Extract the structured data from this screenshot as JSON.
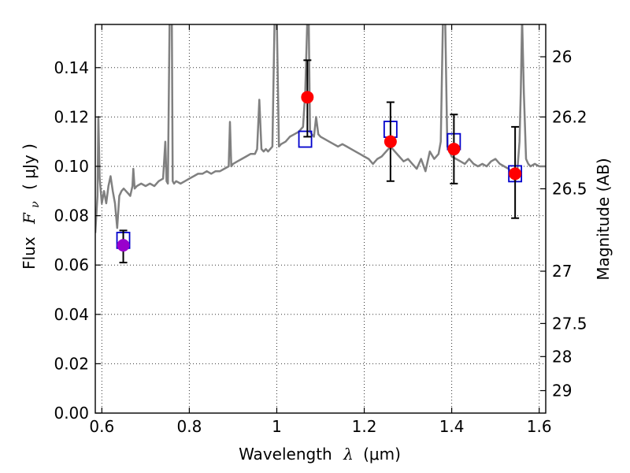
{
  "chart_data": {
    "type": "scatter",
    "xlabel_text": "Wavelength",
    "xlabel_symbol": "λ",
    "xlabel_unit": "(μm)",
    "ylabel_text": "Flux",
    "ylabel_symbol": "F",
    "ylabel_subscript": "ν",
    "ylabel_unit": "( μJy )",
    "y2label": "Magnitude (AB)",
    "xlim": [
      0.585,
      1.615
    ],
    "ylim": [
      0.0,
      0.1575
    ],
    "grid": true,
    "x_ticks": [
      {
        "value": 0.6,
        "label": "0.6"
      },
      {
        "value": 0.8,
        "label": "0.8"
      },
      {
        "value": 1.0,
        "label": "1"
      },
      {
        "value": 1.2,
        "label": "1.2"
      },
      {
        "value": 1.4,
        "label": "1.4"
      },
      {
        "value": 1.6,
        "label": "1.6"
      }
    ],
    "y_ticks": [
      {
        "value": 0.0,
        "label": "0.00"
      },
      {
        "value": 0.02,
        "label": "0.02"
      },
      {
        "value": 0.04,
        "label": "0.04"
      },
      {
        "value": 0.06,
        "label": "0.06"
      },
      {
        "value": 0.08,
        "label": "0.08"
      },
      {
        "value": 0.1,
        "label": "0.10"
      },
      {
        "value": 0.12,
        "label": "0.12"
      },
      {
        "value": 0.14,
        "label": "0.14"
      }
    ],
    "y2_ticks": [
      {
        "flux": 0.1444,
        "label": "26"
      },
      {
        "flux": 0.12,
        "label": "26.2"
      },
      {
        "flux": 0.0909,
        "label": "26.5"
      },
      {
        "flux": 0.0575,
        "label": "27"
      },
      {
        "flux": 0.0363,
        "label": "27.5"
      },
      {
        "flux": 0.0229,
        "label": "28"
      },
      {
        "flux": 0.0091,
        "label": "29"
      }
    ],
    "series": [
      {
        "kind": "line",
        "color": "#808080",
        "x": [
          0.585,
          0.59,
          0.592,
          0.595,
          0.6,
          0.605,
          0.61,
          0.615,
          0.62,
          0.625,
          0.63,
          0.635,
          0.64,
          0.645,
          0.65,
          0.655,
          0.66,
          0.665,
          0.67,
          0.672,
          0.675,
          0.68,
          0.69,
          0.7,
          0.71,
          0.72,
          0.73,
          0.74,
          0.745,
          0.748,
          0.751,
          0.755,
          0.758,
          0.76,
          0.762,
          0.765,
          0.77,
          0.78,
          0.79,
          0.8,
          0.81,
          0.82,
          0.83,
          0.84,
          0.85,
          0.86,
          0.87,
          0.88,
          0.89,
          0.893,
          0.896,
          0.9,
          0.91,
          0.92,
          0.93,
          0.94,
          0.95,
          0.955,
          0.96,
          0.965,
          0.97,
          0.975,
          0.98,
          0.99,
          0.995,
          1.0,
          1.005,
          1.01,
          1.02,
          1.03,
          1.04,
          1.05,
          1.06,
          1.065,
          1.07,
          1.073,
          1.076,
          1.08,
          1.085,
          1.09,
          1.095,
          1.1,
          1.11,
          1.12,
          1.13,
          1.14,
          1.15,
          1.16,
          1.17,
          1.18,
          1.19,
          1.2,
          1.21,
          1.22,
          1.23,
          1.24,
          1.25,
          1.26,
          1.27,
          1.28,
          1.29,
          1.3,
          1.31,
          1.32,
          1.33,
          1.34,
          1.35,
          1.36,
          1.37,
          1.375,
          1.38,
          1.385,
          1.39,
          1.4,
          1.41,
          1.42,
          1.43,
          1.44,
          1.45,
          1.46,
          1.47,
          1.48,
          1.49,
          1.5,
          1.51,
          1.52,
          1.53,
          1.54,
          1.545,
          1.55,
          1.555,
          1.558,
          1.561,
          1.565,
          1.57,
          1.575,
          1.58,
          1.59,
          1.6,
          1.61,
          1.615
        ],
        "y": [
          0.073,
          0.088,
          0.12,
          0.095,
          0.085,
          0.09,
          0.085,
          0.092,
          0.096,
          0.09,
          0.085,
          0.075,
          0.088,
          0.09,
          0.091,
          0.09,
          0.089,
          0.088,
          0.092,
          0.099,
          0.091,
          0.092,
          0.093,
          0.092,
          0.093,
          0.092,
          0.094,
          0.095,
          0.11,
          0.094,
          0.093,
          0.16,
          0.16,
          0.16,
          0.094,
          0.093,
          0.094,
          0.093,
          0.094,
          0.095,
          0.096,
          0.097,
          0.097,
          0.098,
          0.097,
          0.098,
          0.098,
          0.099,
          0.1,
          0.118,
          0.1,
          0.101,
          0.102,
          0.103,
          0.104,
          0.105,
          0.105,
          0.107,
          0.127,
          0.107,
          0.106,
          0.107,
          0.106,
          0.108,
          0.16,
          0.16,
          0.108,
          0.109,
          0.11,
          0.112,
          0.113,
          0.114,
          0.116,
          0.13,
          0.16,
          0.16,
          0.114,
          0.113,
          0.112,
          0.12,
          0.113,
          0.112,
          0.111,
          0.11,
          0.109,
          0.108,
          0.109,
          0.108,
          0.107,
          0.106,
          0.105,
          0.104,
          0.103,
          0.101,
          0.103,
          0.104,
          0.106,
          0.108,
          0.106,
          0.104,
          0.102,
          0.103,
          0.101,
          0.099,
          0.103,
          0.098,
          0.106,
          0.103,
          0.105,
          0.11,
          0.16,
          0.16,
          0.108,
          0.104,
          0.103,
          0.102,
          0.101,
          0.103,
          0.101,
          0.1,
          0.101,
          0.1,
          0.102,
          0.103,
          0.101,
          0.1,
          0.099,
          0.097,
          0.094,
          0.098,
          0.11,
          0.13,
          0.16,
          0.13,
          0.103,
          0.101,
          0.1,
          0.101,
          0.1,
          0.1,
          0.1
        ]
      },
      {
        "kind": "model-points",
        "marker": "open-square",
        "color": "#0000cc",
        "x": [
          0.649,
          1.065,
          1.26,
          1.405,
          1.545
        ],
        "y": [
          0.07,
          0.111,
          0.115,
          0.11,
          0.097
        ]
      },
      {
        "kind": "observed-points",
        "marker": "filled-circle",
        "color": "#ff0000",
        "x": [
          0.649,
          1.07,
          1.26,
          1.405,
          1.545
        ],
        "y": [
          0.068,
          0.128,
          0.11,
          0.107,
          0.097
        ],
        "yerr_low": [
          0.061,
          0.112,
          0.094,
          0.093,
          0.079
        ],
        "yerr_high": [
          0.074,
          0.143,
          0.126,
          0.121,
          0.116
        ]
      }
    ],
    "first_point_color": "#9900cc"
  }
}
